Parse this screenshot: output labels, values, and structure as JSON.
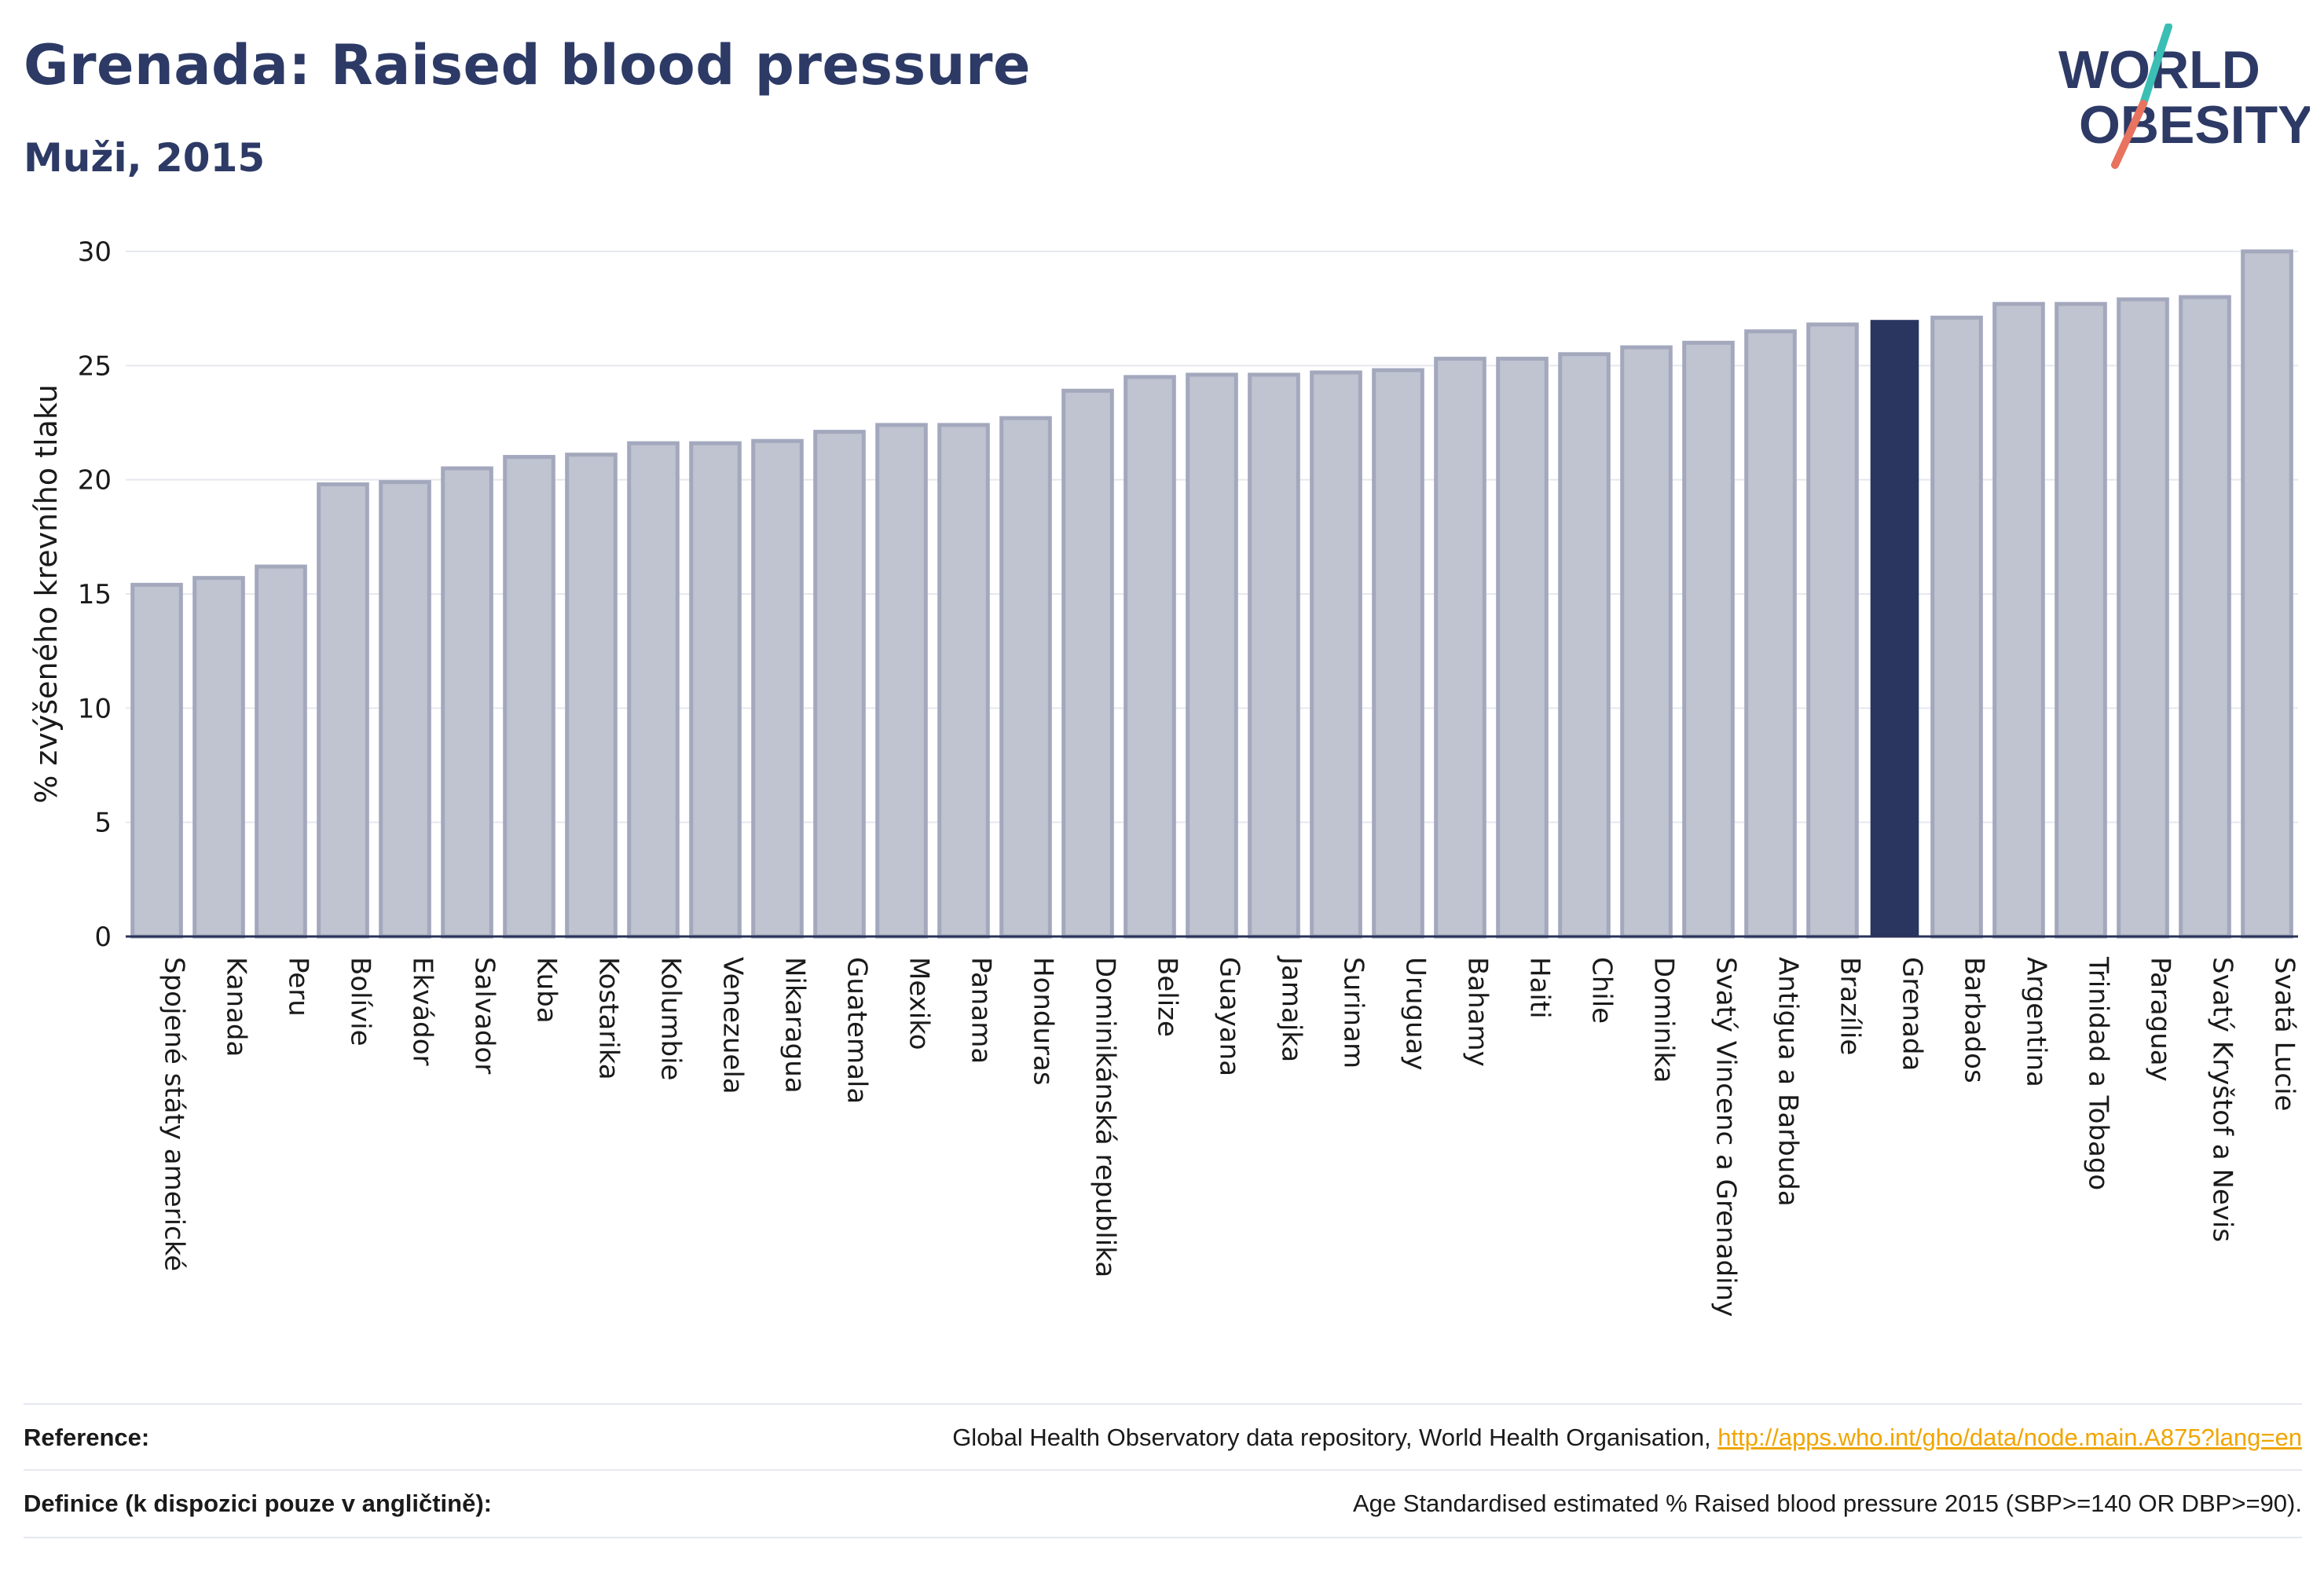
{
  "header": {
    "title": "Grenada: Raised blood pressure",
    "subtitle": "Muži, 2015"
  },
  "logo": {
    "line1": "WORLD",
    "line2": "OBESITY",
    "colors": {
      "text": "#2d3a66",
      "slash_top": "#3bbfb5",
      "slash_bottom": "#e8735f"
    }
  },
  "chart_data": {
    "type": "bar",
    "ylabel": "% zvýšeného krevního tlaku",
    "xlabel": "",
    "ylim": [
      0,
      30
    ],
    "yticks": [
      0,
      5,
      10,
      15,
      20,
      25,
      30
    ],
    "grid": true,
    "highlight": "Grenada",
    "colors": {
      "bar": "#c0c3d0",
      "bar_edge": "#a3a8bd",
      "highlight": "#2a3560",
      "axis": "#2a3358",
      "grid": "#e6e8ef"
    },
    "categories": [
      "Spojené státy americké",
      "Kanada",
      "Peru",
      "Bolívie",
      "Ekvádor",
      "Salvador",
      "Kuba",
      "Kostarika",
      "Kolumbie",
      "Venezuela",
      "Nikaragua",
      "Guatemala",
      "Mexiko",
      "Panama",
      "Honduras",
      "Dominikánská republika",
      "Belize",
      "Guayana",
      "Jamajka",
      "Surinam",
      "Uruguay",
      "Bahamy",
      "Haiti",
      "Chile",
      "Dominika",
      "Svatý Vincenc a Grenadiny",
      "Antigua a Barbuda",
      "Brazílie",
      "Grenada",
      "Barbados",
      "Argentina",
      "Trinidad a Tobago",
      "Paraguay",
      "Svatý Kryštof a Nevis",
      "Svatá Lucie"
    ],
    "values": [
      15.4,
      15.7,
      16.2,
      19.8,
      19.9,
      20.5,
      21.0,
      21.1,
      21.6,
      21.6,
      21.7,
      22.1,
      22.4,
      22.4,
      22.7,
      23.9,
      24.5,
      24.6,
      24.6,
      24.7,
      24.8,
      25.3,
      25.3,
      25.5,
      25.8,
      26.0,
      26.5,
      26.8,
      27.0,
      27.1,
      27.7,
      27.7,
      27.9,
      28.0,
      30.0
    ]
  },
  "footer": {
    "reference_label": "Reference:",
    "reference_text": "Global Health Observatory data repository, World Health Organisation, ",
    "reference_link": "http://apps.who.int/gho/data/node.main.A875?lang=en",
    "definition_label": "Definice (k dispozici pouze v angličtině):",
    "definition_text": "Age Standardised estimated % Raised blood pressure 2015 (SBP>=140 OR DBP>=90)."
  }
}
